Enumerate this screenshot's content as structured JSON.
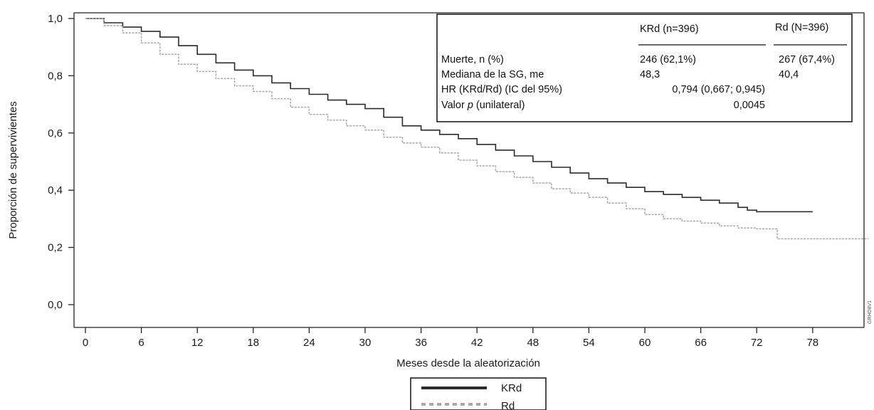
{
  "chart_data": {
    "type": "line",
    "ylabel": "Proporción de supervivientes",
    "xlabel": "Meses desde la aleatorización",
    "xlim": [
      0,
      85
    ],
    "ylim": [
      0,
      1.05
    ],
    "x_ticks": [
      0,
      6,
      12,
      18,
      24,
      30,
      36,
      42,
      48,
      54,
      60,
      66,
      72,
      78
    ],
    "x_tick_labels": [
      "0",
      "6",
      "12",
      "18",
      "24",
      "30",
      "36",
      "42",
      "48",
      "54",
      "60",
      "66",
      "72",
      "78"
    ],
    "y_ticks": [
      0,
      0.2,
      0.4,
      0.6,
      0.8,
      1.0
    ],
    "y_tick_labels": [
      "0,0",
      "0,2",
      "0,4",
      "0,6",
      "0,8",
      "1,0"
    ],
    "grid": false,
    "legend_position": "bottom-center",
    "series": [
      {
        "name": "KRd",
        "color": "#2b2b2b",
        "style": "solid",
        "points": [
          [
            0,
            1.0
          ],
          [
            2,
            0.985
          ],
          [
            4,
            0.97
          ],
          [
            6,
            0.955
          ],
          [
            8,
            0.935
          ],
          [
            10,
            0.905
          ],
          [
            12,
            0.875
          ],
          [
            14,
            0.845
          ],
          [
            16,
            0.82
          ],
          [
            18,
            0.8
          ],
          [
            20,
            0.775
          ],
          [
            22,
            0.755
          ],
          [
            24,
            0.735
          ],
          [
            26,
            0.715
          ],
          [
            28,
            0.7
          ],
          [
            30,
            0.685
          ],
          [
            32,
            0.655
          ],
          [
            34,
            0.625
          ],
          [
            36,
            0.61
          ],
          [
            38,
            0.595
          ],
          [
            40,
            0.58
          ],
          [
            42,
            0.56
          ],
          [
            44,
            0.54
          ],
          [
            46,
            0.52
          ],
          [
            48,
            0.5
          ],
          [
            50,
            0.48
          ],
          [
            52,
            0.46
          ],
          [
            54,
            0.44
          ],
          [
            56,
            0.425
          ],
          [
            58,
            0.41
          ],
          [
            60,
            0.395
          ],
          [
            62,
            0.385
          ],
          [
            64,
            0.375
          ],
          [
            66,
            0.365
          ],
          [
            68,
            0.355
          ],
          [
            70,
            0.34
          ],
          [
            71,
            0.33
          ],
          [
            72,
            0.325
          ],
          [
            78,
            0.325
          ]
        ]
      },
      {
        "name": "Rd",
        "color": "#a8a8a8",
        "style": "dotted",
        "points": [
          [
            0,
            1.0
          ],
          [
            2,
            0.975
          ],
          [
            4,
            0.95
          ],
          [
            6,
            0.915
          ],
          [
            8,
            0.875
          ],
          [
            10,
            0.84
          ],
          [
            12,
            0.815
          ],
          [
            14,
            0.79
          ],
          [
            16,
            0.765
          ],
          [
            18,
            0.745
          ],
          [
            20,
            0.72
          ],
          [
            22,
            0.69
          ],
          [
            24,
            0.665
          ],
          [
            26,
            0.645
          ],
          [
            28,
            0.625
          ],
          [
            30,
            0.61
          ],
          [
            32,
            0.585
          ],
          [
            34,
            0.565
          ],
          [
            36,
            0.55
          ],
          [
            38,
            0.53
          ],
          [
            40,
            0.505
          ],
          [
            42,
            0.485
          ],
          [
            44,
            0.465
          ],
          [
            46,
            0.445
          ],
          [
            48,
            0.425
          ],
          [
            50,
            0.405
          ],
          [
            52,
            0.39
          ],
          [
            54,
            0.375
          ],
          [
            56,
            0.355
          ],
          [
            58,
            0.335
          ],
          [
            60,
            0.315
          ],
          [
            62,
            0.3
          ],
          [
            64,
            0.292
          ],
          [
            66,
            0.285
          ],
          [
            68,
            0.275
          ],
          [
            70,
            0.268
          ],
          [
            72,
            0.265
          ],
          [
            74,
            0.265
          ],
          [
            74.2,
            0.23
          ],
          [
            84,
            0.23
          ]
        ]
      }
    ],
    "stats_table": {
      "col1_header": "KRd (n=396)",
      "col2_header": "Rd (N=396)",
      "rows": [
        {
          "label": "Muerte, n (%)",
          "krd": "246 (62,1%)",
          "rd": "267 (67,4%)"
        },
        {
          "label": "Mediana de la SG, me",
          "krd": "48,3",
          "rd": "40,4"
        },
        {
          "label": "HR (KRd/Rd) (IC del 95%)",
          "krd": "0,794 (0,667; 0,945)",
          "rd": ""
        },
        {
          "label_prefix": "Valor ",
          "label_italic": "p",
          "label_suffix": " (unilateral)",
          "krd": "0,0045",
          "rd": ""
        }
      ]
    },
    "legend": [
      {
        "label": "KRd",
        "color": "#2b2b2b",
        "style": "solid"
      },
      {
        "label": "Rd",
        "color": "#a8a8a8",
        "style": "dotted"
      }
    ],
    "side_code": "GRHD8V1"
  }
}
